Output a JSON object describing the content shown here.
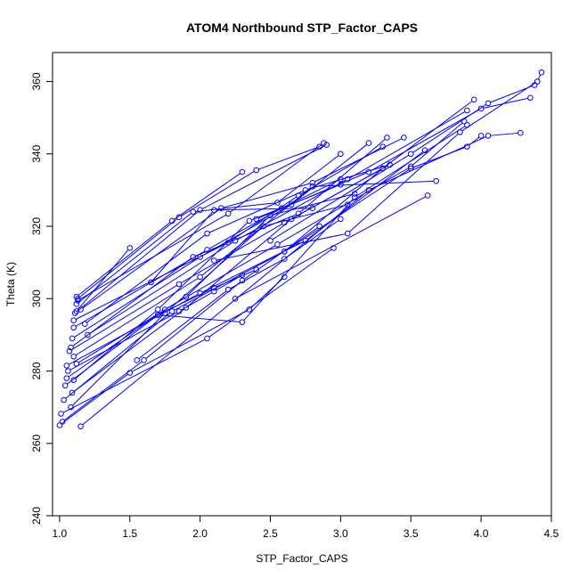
{
  "chart_data": {
    "type": "scatter",
    "title": "ATOM4 Northbound STP_Factor_CAPS",
    "xlabel": "STP_Factor_CAPS",
    "ylabel": "Theta (K)",
    "xlim": [
      0.95,
      4.5
    ],
    "ylim": [
      240,
      368
    ],
    "xticks": [
      "1.0",
      "1.5",
      "2.0",
      "2.5",
      "3.0",
      "3.5",
      "4.0",
      "4.5"
    ],
    "yticks": [
      "240",
      "260",
      "280",
      "300",
      "320",
      "340",
      "360"
    ],
    "xtick_values": [
      1.0,
      1.5,
      2.0,
      2.5,
      3.0,
      3.5,
      4.0,
      4.5
    ],
    "ytick_values": [
      240,
      260,
      280,
      300,
      320,
      340,
      360
    ],
    "grid": false,
    "legend": "none",
    "color": "#0000ff",
    "marker": "open-circle",
    "style": "lines-and-points",
    "series": [
      {
        "points": [
          [
            1.0,
            265.0
          ],
          [
            1.5,
            279.5
          ],
          [
            2.35,
            297.0
          ],
          [
            2.6,
            306.0
          ]
        ]
      },
      {
        "points": [
          [
            1.15,
            264.7
          ],
          [
            3.2,
            330.0
          ],
          [
            4.05,
            345.0
          ],
          [
            4.28,
            345.8
          ]
        ]
      },
      {
        "points": [
          [
            1.01,
            268.2
          ],
          [
            2.05,
            289.0
          ],
          [
            2.95,
            314.0
          ]
        ]
      },
      {
        "points": [
          [
            1.02,
            266.0
          ],
          [
            1.6,
            283.0
          ],
          [
            2.3,
            305.0
          ],
          [
            2.85,
            320.0
          ]
        ]
      },
      {
        "points": [
          [
            1.03,
            272.0
          ],
          [
            1.8,
            296.5
          ],
          [
            2.6,
            313.0
          ],
          [
            3.3,
            336.0
          ]
        ]
      },
      {
        "points": [
          [
            1.04,
            276.0
          ],
          [
            1.7,
            295.5
          ],
          [
            2.1,
            303.0
          ],
          [
            2.4,
            308.0
          ]
        ]
      },
      {
        "points": [
          [
            1.05,
            278.0
          ],
          [
            1.75,
            297.0
          ],
          [
            2.55,
            315.0
          ],
          [
            3.5,
            336.5
          ],
          [
            3.88,
            349.0
          ]
        ]
      },
      {
        "points": [
          [
            1.06,
            280.0
          ],
          [
            1.85,
            296.5
          ],
          [
            2.1,
            302.0
          ],
          [
            2.3,
            306.5
          ]
        ]
      },
      {
        "points": [
          [
            1.05,
            281.5
          ],
          [
            2.0,
            301.5
          ],
          [
            2.75,
            316.0
          ],
          [
            3.6,
            341.0
          ]
        ]
      },
      {
        "points": [
          [
            1.07,
            285.5
          ],
          [
            1.85,
            304.0
          ],
          [
            2.6,
            321.0
          ],
          [
            3.35,
            337.0
          ]
        ]
      },
      {
        "points": [
          [
            1.08,
            286.5
          ],
          [
            1.95,
            311.5
          ],
          [
            2.7,
            323.5
          ],
          [
            3.33,
            344.5
          ]
        ]
      },
      {
        "points": [
          [
            1.09,
            289.0
          ],
          [
            2.0,
            311.5
          ],
          [
            2.65,
            326.0
          ],
          [
            3.2,
            343.0
          ]
        ]
      },
      {
        "points": [
          [
            1.1,
            292.0
          ],
          [
            2.05,
            313.5
          ],
          [
            2.58,
            325.0
          ],
          [
            3.0,
            333.0
          ]
        ]
      },
      {
        "points": [
          [
            1.1,
            294.0
          ],
          [
            2.2,
            315.5
          ],
          [
            2.7,
            328.5
          ],
          [
            3.3,
            342.0
          ]
        ]
      },
      {
        "points": [
          [
            1.11,
            296.0
          ],
          [
            2.0,
            324.5
          ],
          [
            2.9,
            342.5
          ]
        ]
      },
      {
        "points": [
          [
            1.12,
            296.5
          ],
          [
            1.5,
            314.0
          ]
        ]
      },
      {
        "points": [
          [
            1.12,
            298.5
          ],
          [
            1.95,
            324.0
          ],
          [
            2.55,
            326.5
          ],
          [
            3.0,
            340.0
          ]
        ]
      },
      {
        "points": [
          [
            1.13,
            299.5
          ],
          [
            2.2,
            323.5
          ],
          [
            2.88,
            343.0
          ]
        ]
      },
      {
        "points": [
          [
            1.13,
            300.0
          ],
          [
            1.85,
            322.5
          ],
          [
            2.4,
            335.5
          ],
          [
            2.85,
            342.0
          ]
        ]
      },
      {
        "points": [
          [
            1.12,
            300.5
          ],
          [
            1.8,
            321.5
          ],
          [
            2.3,
            335.0
          ]
        ]
      },
      {
        "points": [
          [
            1.15,
            297.0
          ],
          [
            2.15,
            325.0
          ],
          [
            2.8,
            332.0
          ],
          [
            3.45,
            344.5
          ]
        ]
      },
      {
        "points": [
          [
            1.18,
            293.0
          ],
          [
            2.05,
            318.0
          ],
          [
            2.75,
            330.0
          ],
          [
            3.35,
            337.0
          ]
        ]
      },
      {
        "points": [
          [
            1.2,
            290.0
          ],
          [
            2.25,
            316.0
          ],
          [
            3.05,
            333.0
          ],
          [
            3.9,
            352.0
          ]
        ]
      },
      {
        "points": [
          [
            1.1,
            277.5
          ],
          [
            1.7,
            297.0
          ],
          [
            2.35,
            321.5
          ],
          [
            3.0,
            331.5
          ]
        ]
      },
      {
        "points": [
          [
            1.12,
            282.0
          ],
          [
            1.9,
            300.5
          ],
          [
            2.5,
            323.0
          ],
          [
            3.1,
            329.0
          ]
        ]
      },
      {
        "points": [
          [
            1.08,
            270.0
          ],
          [
            1.75,
            296.0
          ],
          [
            2.45,
            320.0
          ],
          [
            3.05,
            326.0
          ]
        ]
      },
      {
        "points": [
          [
            1.09,
            274.0
          ],
          [
            1.9,
            297.5
          ],
          [
            2.65,
            322.0
          ],
          [
            3.3,
            336.0
          ],
          [
            3.95,
            355.0
          ]
        ]
      },
      {
        "points": [
          [
            1.1,
            284.0
          ],
          [
            2.0,
            306.0
          ],
          [
            2.8,
            331.0
          ],
          [
            3.68,
            332.5
          ]
        ]
      },
      {
        "points": [
          [
            1.55,
            283.0
          ],
          [
            2.2,
            302.5
          ],
          [
            2.6,
            311.0
          ],
          [
            3.0,
            322.0
          ]
        ]
      },
      {
        "points": [
          [
            1.65,
            304.5
          ],
          [
            2.1,
            324.5
          ],
          [
            2.8,
            325.0
          ]
        ]
      },
      {
        "points": [
          [
            1.7,
            295.5
          ],
          [
            2.3,
            293.5
          ],
          [
            3.1,
            328.0
          ],
          [
            3.9,
            348.0
          ]
        ]
      },
      {
        "points": [
          [
            2.25,
            300.0
          ],
          [
            3.62,
            328.5
          ]
        ]
      },
      {
        "points": [
          [
            2.1,
            310.5
          ],
          [
            3.05,
            318.0
          ],
          [
            3.85,
            346.0
          ],
          [
            4.4,
            360.0
          ],
          [
            4.43,
            362.5
          ]
        ]
      },
      {
        "points": [
          [
            2.4,
            322.0
          ],
          [
            3.2,
            335.0
          ],
          [
            4.0,
            352.5
          ],
          [
            4.35,
            355.5
          ]
        ]
      },
      {
        "points": [
          [
            2.5,
            316.0
          ],
          [
            3.5,
            340.0
          ],
          [
            4.05,
            354.0
          ],
          [
            4.38,
            359.0
          ]
        ]
      },
      {
        "points": [
          [
            2.6,
            313.0
          ],
          [
            3.5,
            336.0
          ],
          [
            3.9,
            342.0
          ],
          [
            4.0,
            345.0
          ]
        ]
      }
    ]
  }
}
